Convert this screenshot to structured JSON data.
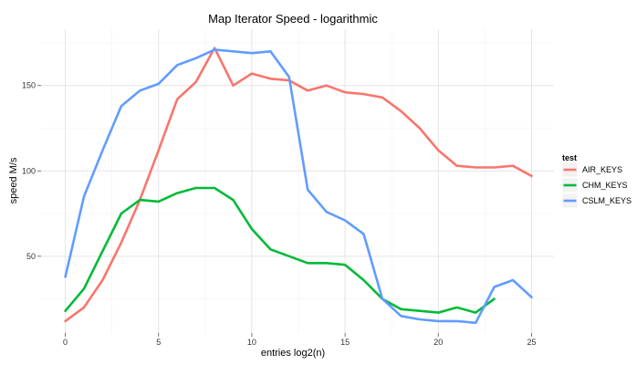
{
  "chart_data": {
    "type": "line",
    "title": "Map Iterator Speed - logarithmic",
    "xlabel": "entries log2(n)",
    "ylabel": "speed M/s",
    "xlim": [
      -1.3,
      26.2
    ],
    "ylim": [
      5,
      183
    ],
    "x_ticks": [
      0,
      5,
      10,
      15,
      20,
      25
    ],
    "y_ticks": [
      50,
      100,
      150
    ],
    "grid": true,
    "legend_title": "test",
    "legend_position": "right",
    "series": [
      {
        "name": "AIR_KEYS",
        "color": "#F8766D",
        "x": [
          0,
          1,
          2,
          3,
          4,
          5,
          6,
          7,
          8,
          9,
          10,
          11,
          12,
          13,
          14,
          15,
          16,
          17,
          18,
          19,
          20,
          21,
          22,
          23,
          24,
          25
        ],
        "values": [
          12,
          20,
          36,
          58,
          83,
          112,
          142,
          152,
          172,
          150,
          157,
          154,
          153,
          147,
          150,
          146,
          145,
          143,
          135,
          125,
          112,
          103,
          102,
          102,
          103,
          97
        ]
      },
      {
        "name": "CHM_KEYS",
        "color": "#00BA38",
        "x": [
          0,
          1,
          2,
          3,
          4,
          5,
          6,
          7,
          8,
          9,
          10,
          11,
          12,
          13,
          14,
          15,
          16,
          17,
          18,
          19,
          20,
          21,
          22,
          23
        ],
        "values": [
          18,
          31,
          53,
          75,
          83,
          82,
          87,
          90,
          90,
          83,
          66,
          54,
          50,
          46,
          46,
          45,
          36,
          25,
          19,
          18,
          17,
          20,
          17,
          25
        ]
      },
      {
        "name": "CSLM_KEYS",
        "color": "#619CFF",
        "x": [
          0,
          1,
          2,
          3,
          4,
          5,
          6,
          7,
          8,
          9,
          10,
          11,
          12,
          13,
          14,
          15,
          16,
          17,
          18,
          19,
          20,
          21,
          22,
          23,
          24,
          25
        ],
        "values": [
          38,
          85,
          112,
          138,
          147,
          151,
          162,
          166,
          171,
          170,
          169,
          170,
          155,
          89,
          76,
          71,
          63,
          25,
          15,
          13,
          12,
          12,
          11,
          32,
          36,
          26
        ]
      }
    ]
  }
}
